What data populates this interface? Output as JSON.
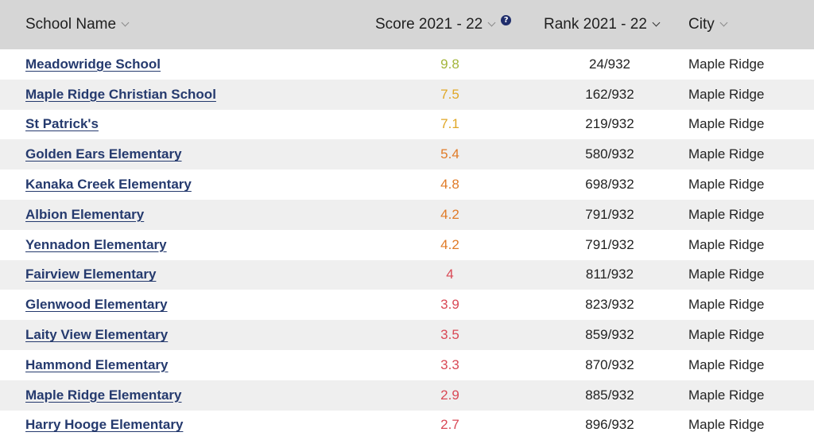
{
  "headers": {
    "school_name": "School Name",
    "score": "Score 2021 - 22",
    "rank": "Rank 2021 - 22",
    "city": "City",
    "help_glyph": "?"
  },
  "score_colors": {
    "high": "#a3b53b",
    "mid": "#e0a727",
    "midlow": "#e07b28",
    "low": "#d94855"
  },
  "rows": [
    {
      "name": "Meadowridge School",
      "score": "9.8",
      "rank": "24/932",
      "city": "Maple Ridge",
      "score_color": "#a3b53b"
    },
    {
      "name": "Maple Ridge Christian School",
      "score": "7.5",
      "rank": "162/932",
      "city": "Maple Ridge",
      "score_color": "#e0a727"
    },
    {
      "name": "St Patrick's",
      "score": "7.1",
      "rank": "219/932",
      "city": "Maple Ridge",
      "score_color": "#e0a727"
    },
    {
      "name": "Golden Ears Elementary",
      "score": "5.4",
      "rank": "580/932",
      "city": "Maple Ridge",
      "score_color": "#e07b28"
    },
    {
      "name": "Kanaka Creek Elementary",
      "score": "4.8",
      "rank": "698/932",
      "city": "Maple Ridge",
      "score_color": "#e07b28"
    },
    {
      "name": "Albion Elementary",
      "score": "4.2",
      "rank": "791/932",
      "city": "Maple Ridge",
      "score_color": "#e07b28"
    },
    {
      "name": "Yennadon Elementary",
      "score": "4.2",
      "rank": "791/932",
      "city": "Maple Ridge",
      "score_color": "#e07b28"
    },
    {
      "name": "Fairview Elementary",
      "score": "4",
      "rank": "811/932",
      "city": "Maple Ridge",
      "score_color": "#d94855"
    },
    {
      "name": "Glenwood Elementary",
      "score": "3.9",
      "rank": "823/932",
      "city": "Maple Ridge",
      "score_color": "#d94855"
    },
    {
      "name": "Laity View Elementary",
      "score": "3.5",
      "rank": "859/932",
      "city": "Maple Ridge",
      "score_color": "#d94855"
    },
    {
      "name": "Hammond Elementary",
      "score": "3.3",
      "rank": "870/932",
      "city": "Maple Ridge",
      "score_color": "#d94855"
    },
    {
      "name": "Maple Ridge Elementary",
      "score": "2.9",
      "rank": "885/932",
      "city": "Maple Ridge",
      "score_color": "#d94855"
    },
    {
      "name": "Harry Hooge Elementary",
      "score": "2.7",
      "rank": "896/932",
      "city": "Maple Ridge",
      "score_color": "#d94855"
    }
  ]
}
